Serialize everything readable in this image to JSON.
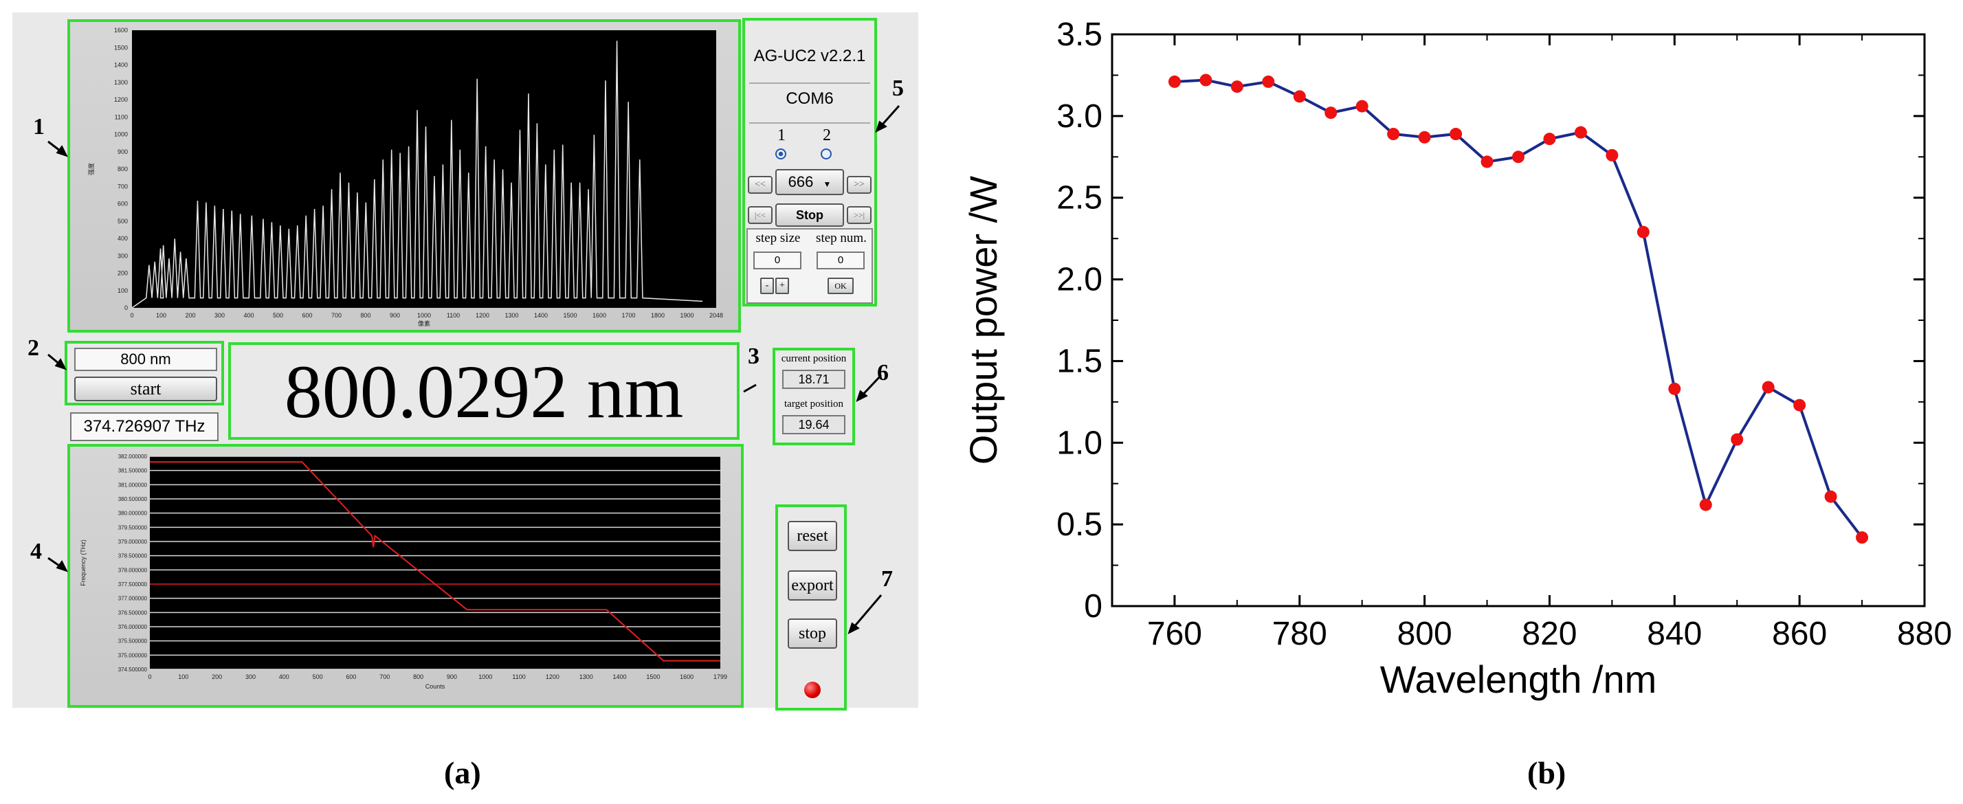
{
  "panel_a": {
    "caption": "(a)",
    "callouts": [
      "1",
      "2",
      "3",
      "4",
      "5",
      "6",
      "7"
    ],
    "spectrum": {
      "y_label": "强度",
      "x_label": "像素",
      "y_ticks": [
        "0",
        "100",
        "200",
        "300",
        "400",
        "500",
        "600",
        "700",
        "800",
        "900",
        "1000",
        "1100",
        "1200",
        "1300",
        "1400",
        "1500",
        "1600"
      ],
      "x_ticks": [
        "0",
        "100",
        "200",
        "300",
        "400",
        "500",
        "600",
        "700",
        "800",
        "900",
        "1000",
        "1100",
        "1200",
        "1300",
        "1400",
        "1500",
        "1600",
        "1700",
        "1800",
        "1900",
        "2048"
      ]
    },
    "wavelength_input": "800 nm",
    "start_label": "start",
    "frequency_readout": "374.726907 THz",
    "wavelength_display": "800.0292 nm",
    "controller": {
      "model": "AG-UC2 v2.2.1",
      "port": "COM6",
      "channels": [
        "1",
        "2"
      ],
      "speed_value": "666",
      "rewind_label": "<<",
      "forward_label": ">>",
      "first_label": "|<<",
      "last_label": ">>|",
      "stop_label": "Stop",
      "step_size_label": "step size",
      "step_num_label": "step num.",
      "step_size_value": "0",
      "step_num_value": "0",
      "minus_label": "-",
      "plus_label": "+",
      "ok_label": "OK"
    },
    "position": {
      "current_label": "current position",
      "current_value": "18.71",
      "target_label": "target position",
      "target_value": "19.64"
    },
    "freq_chart": {
      "y_label": "Frequency (THz)",
      "x_label": "Counts",
      "y_ticks": [
        "382.000000",
        "381.500000",
        "381.000000",
        "380.500000",
        "380.000000",
        "379.500000",
        "379.000000",
        "378.500000",
        "378.000000",
        "377.500000",
        "377.000000",
        "376.500000",
        "376.000000",
        "375.500000",
        "375.000000",
        "374.500000"
      ],
      "x_ticks": [
        "0",
        "100",
        "200",
        "300",
        "400",
        "500",
        "600",
        "700",
        "800",
        "900",
        "1000",
        "1100",
        "1200",
        "1300",
        "1400",
        "1500",
        "1600",
        "1799"
      ]
    },
    "buttons": {
      "reset": "reset",
      "export": "export",
      "stop": "stop"
    },
    "colors": {
      "highlight": "#33dd33",
      "led": "#e00000",
      "trace": "#e02020"
    }
  },
  "chart_data": {
    "type": "line",
    "caption": "(b)",
    "xlabel": "Wavelength /nm",
    "ylabel": "Output power /W",
    "xlim": [
      750,
      880
    ],
    "ylim": [
      0,
      3.5
    ],
    "xticks": [
      760,
      780,
      800,
      820,
      840,
      860,
      880
    ],
    "yticks": [
      0,
      0.5,
      1.0,
      1.5,
      2.0,
      2.5,
      3.0,
      3.5
    ],
    "xtick_labels": [
      "760",
      "780",
      "800",
      "820",
      "840",
      "860",
      "880"
    ],
    "ytick_labels": [
      "0",
      "0.5",
      "1.0",
      "1.5",
      "2.0",
      "2.5",
      "3.0",
      "3.5"
    ],
    "series": [
      {
        "name": "Output power",
        "line_color": "#1a2a8a",
        "marker_color": "#ee1111",
        "x": [
          760,
          765,
          770,
          775,
          780,
          785,
          790,
          795,
          800,
          805,
          810,
          815,
          820,
          825,
          830,
          835,
          840,
          845,
          850,
          855,
          860,
          865,
          870
        ],
        "y": [
          3.21,
          3.22,
          3.18,
          3.21,
          3.12,
          3.02,
          3.06,
          2.89,
          2.87,
          2.89,
          2.72,
          2.75,
          2.86,
          2.9,
          2.76,
          2.29,
          1.33,
          0.62,
          1.02,
          1.34,
          1.23,
          0.67,
          0.42
        ]
      }
    ]
  }
}
